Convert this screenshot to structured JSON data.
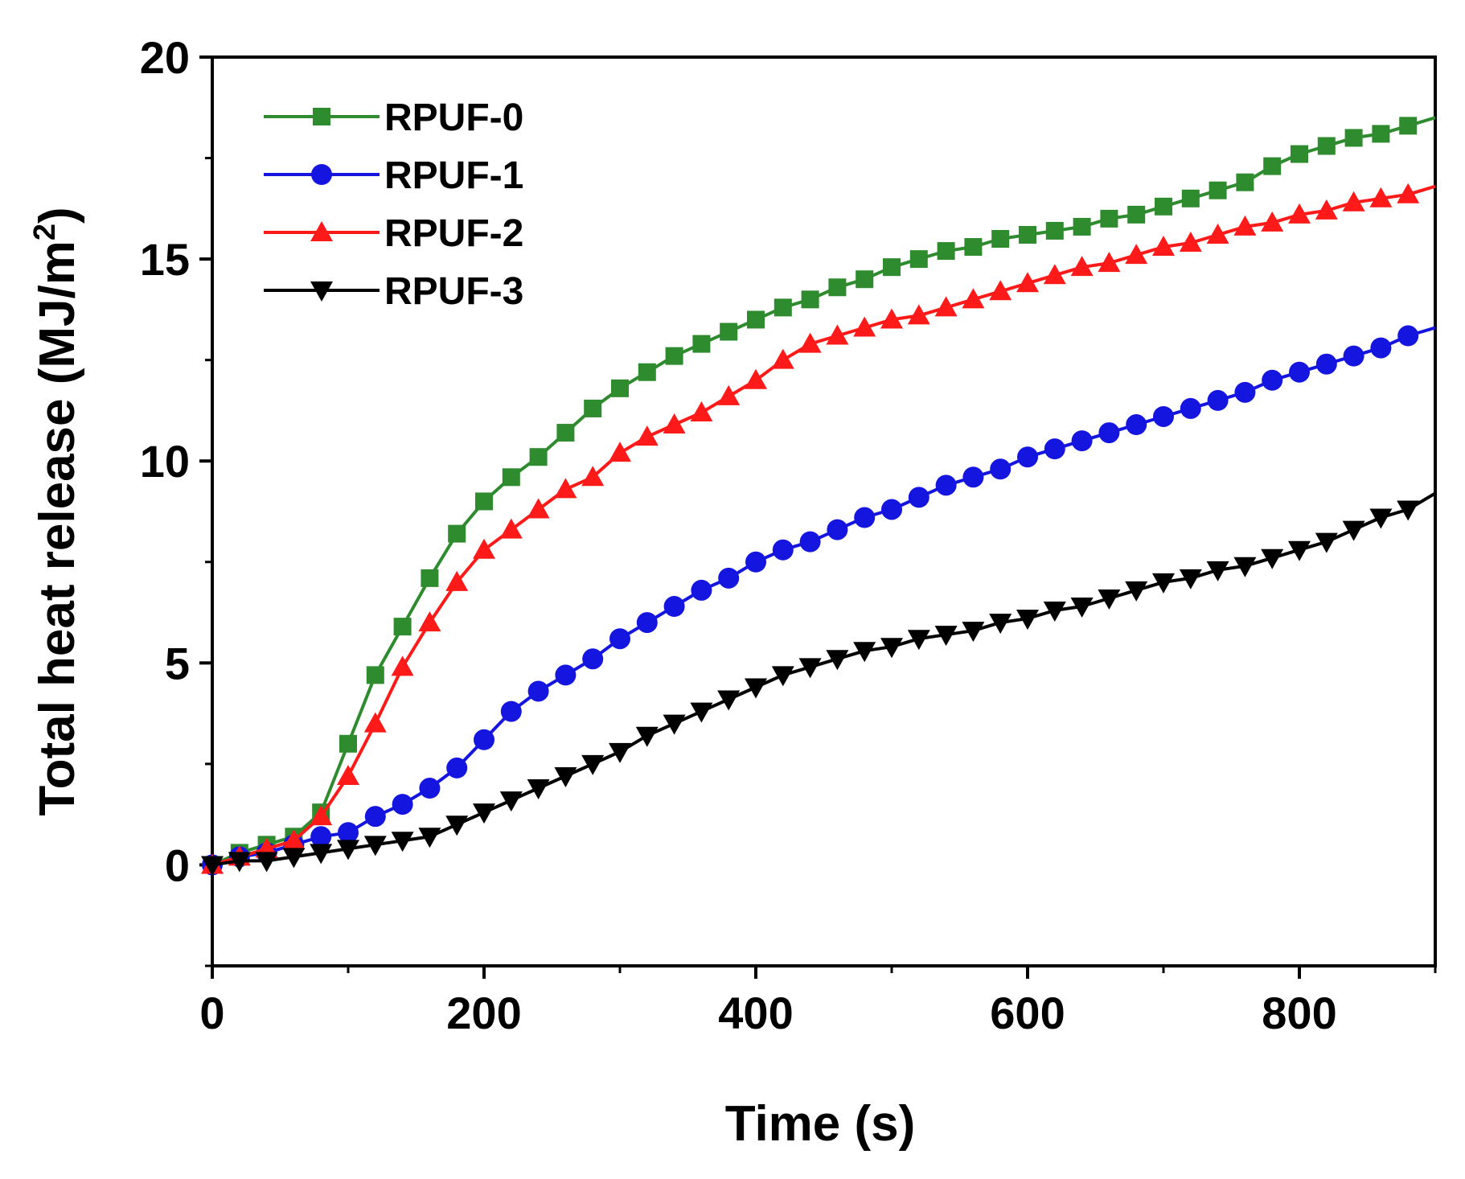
{
  "chart_data": {
    "type": "line",
    "title": "",
    "xlabel": "Time (s)",
    "ylabel": "Total heat release (MJ/m",
    "ylabel_superscript": "2",
    "ylabel_close": ")",
    "xlim": [
      0,
      900
    ],
    "ylim": [
      -2.5,
      20
    ],
    "x_ticks": [
      0,
      200,
      400,
      600,
      800
    ],
    "x_tick_labels": [
      "0",
      "200",
      "400",
      "600",
      "800"
    ],
    "y_ticks": [
      0,
      5,
      10,
      15,
      20
    ],
    "y_tick_labels": [
      "0",
      "5",
      "10",
      "15",
      "20"
    ],
    "legend_position": "top-left",
    "x": [
      0,
      20,
      40,
      60,
      80,
      100,
      120,
      140,
      160,
      180,
      200,
      220,
      240,
      260,
      280,
      300,
      320,
      340,
      360,
      380,
      400,
      420,
      440,
      460,
      480,
      500,
      520,
      540,
      560,
      580,
      600,
      620,
      640,
      660,
      680,
      700,
      720,
      740,
      760,
      780,
      800,
      820,
      840,
      860,
      880
    ],
    "series": [
      {
        "name": "RPUF-0",
        "color": "#2e8b2e",
        "marker": "square",
        "values": [
          0,
          0.3,
          0.5,
          0.7,
          1.3,
          3.0,
          4.7,
          5.9,
          7.1,
          8.2,
          9.0,
          9.6,
          10.1,
          10.7,
          11.3,
          11.8,
          12.2,
          12.6,
          12.9,
          13.2,
          13.5,
          13.8,
          14.0,
          14.3,
          14.5,
          14.8,
          15.0,
          15.2,
          15.3,
          15.5,
          15.6,
          15.7,
          15.8,
          16.0,
          16.1,
          16.3,
          16.5,
          16.7,
          16.9,
          17.3,
          17.6,
          17.8,
          18.0,
          18.1,
          18.3
        ],
        "end": [
          900,
          18.5
        ]
      },
      {
        "name": "RPUF-1",
        "color": "#1515e0",
        "marker": "circle",
        "values": [
          0,
          0.2,
          0.3,
          0.5,
          0.7,
          0.8,
          1.2,
          1.5,
          1.9,
          2.4,
          3.1,
          3.8,
          4.3,
          4.7,
          5.1,
          5.6,
          6.0,
          6.4,
          6.8,
          7.1,
          7.5,
          7.8,
          8.0,
          8.3,
          8.6,
          8.8,
          9.1,
          9.4,
          9.6,
          9.8,
          10.1,
          10.3,
          10.5,
          10.7,
          10.9,
          11.1,
          11.3,
          11.5,
          11.7,
          12.0,
          12.2,
          12.4,
          12.6,
          12.8,
          13.1
        ],
        "end": [
          900,
          13.3
        ]
      },
      {
        "name": "RPUF-2",
        "color": "#ff1a1a",
        "marker": "triangle-up",
        "values": [
          0,
          0.2,
          0.4,
          0.6,
          1.2,
          2.2,
          3.5,
          4.9,
          6.0,
          7.0,
          7.8,
          8.3,
          8.8,
          9.3,
          9.6,
          10.2,
          10.6,
          10.9,
          11.2,
          11.6,
          12.0,
          12.5,
          12.9,
          13.1,
          13.3,
          13.5,
          13.6,
          13.8,
          14.0,
          14.2,
          14.4,
          14.6,
          14.8,
          14.9,
          15.1,
          15.3,
          15.4,
          15.6,
          15.8,
          15.9,
          16.1,
          16.2,
          16.4,
          16.5,
          16.6
        ],
        "end": [
          900,
          16.8
        ]
      },
      {
        "name": "RPUF-3",
        "color": "#000000",
        "marker": "triangle-down",
        "values": [
          0,
          0.1,
          0.1,
          0.2,
          0.3,
          0.4,
          0.5,
          0.6,
          0.7,
          1.0,
          1.3,
          1.6,
          1.9,
          2.2,
          2.5,
          2.8,
          3.2,
          3.5,
          3.8,
          4.1,
          4.4,
          4.7,
          4.9,
          5.1,
          5.3,
          5.4,
          5.6,
          5.7,
          5.8,
          6.0,
          6.1,
          6.3,
          6.4,
          6.6,
          6.8,
          7.0,
          7.1,
          7.3,
          7.4,
          7.6,
          7.8,
          8.0,
          8.3,
          8.6,
          8.8
        ],
        "end": [
          900,
          9.2
        ]
      }
    ]
  }
}
